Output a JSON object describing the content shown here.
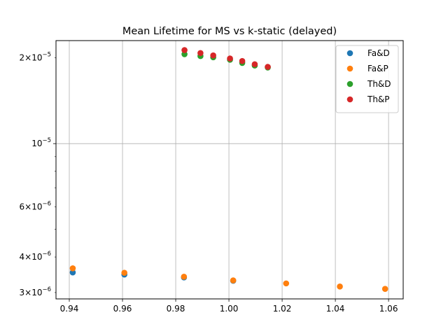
{
  "chart_data": {
    "type": "scatter",
    "title": "Mean Lifetime for MS vs k-static (delayed)",
    "xlabel": "",
    "ylabel": "",
    "xlim": [
      0.935,
      1.0655
    ],
    "ylim": [
      2.85e-06,
      2.3e-05
    ],
    "yscale": "log",
    "grid": true,
    "legend_position": "top-right",
    "x_ticks": [
      {
        "value": 0.94,
        "label": "0.94"
      },
      {
        "value": 0.96,
        "label": "0.96"
      },
      {
        "value": 0.98,
        "label": "0.98"
      },
      {
        "value": 1.0,
        "label": "1.00"
      },
      {
        "value": 1.02,
        "label": "1.02"
      },
      {
        "value": 1.04,
        "label": "1.04"
      },
      {
        "value": 1.06,
        "label": "1.06"
      }
    ],
    "y_major_ticks": [
      {
        "value": 1e-05,
        "base": "10",
        "exp": "−5",
        "coef": ""
      }
    ],
    "y_minor_labeled_ticks": [
      {
        "value": 2e-05,
        "coef": "2",
        "exp": "−5"
      },
      {
        "value": 6e-06,
        "coef": "6",
        "exp": "−6"
      },
      {
        "value": 4e-06,
        "coef": "4",
        "exp": "−6"
      },
      {
        "value": 3e-06,
        "coef": "3",
        "exp": "−6"
      }
    ],
    "y_minor_unlabeled_ticks": [
      5e-06,
      7e-06,
      8e-06,
      9e-06
    ],
    "series": [
      {
        "name": "Fa&D",
        "color": "#1f77b4",
        "x": [
          0.9413,
          0.9607,
          0.9831,
          1.0016
        ],
        "y": [
          3.53e-06,
          3.47e-06,
          3.39e-06,
          3.3e-06
        ]
      },
      {
        "name": "Fa&P",
        "color": "#ff7f0e",
        "x": [
          0.9413,
          0.9607,
          0.9831,
          1.0016,
          1.0215,
          1.0417,
          1.0587
        ],
        "y": [
          3.65e-06,
          3.52e-06,
          3.41e-06,
          3.31e-06,
          3.23e-06,
          3.15e-06,
          3.09e-06
        ]
      },
      {
        "name": "Th&D",
        "color": "#2ca02c",
        "x": [
          0.9833,
          0.9893,
          0.9941,
          1.0004,
          1.005,
          1.0097,
          1.0146
        ],
        "y": [
          2.06e-05,
          2.03e-05,
          2.01e-05,
          1.97e-05,
          1.92e-05,
          1.88e-05,
          1.85e-05
        ]
      },
      {
        "name": "Th&P",
        "color": "#d62728",
        "x": [
          0.9833,
          0.9893,
          0.9941,
          1.0004,
          1.005,
          1.0097,
          1.0146
        ],
        "y": [
          2.13e-05,
          2.08e-05,
          2.04e-05,
          1.99e-05,
          1.95e-05,
          1.9e-05,
          1.86e-05
        ]
      }
    ]
  }
}
